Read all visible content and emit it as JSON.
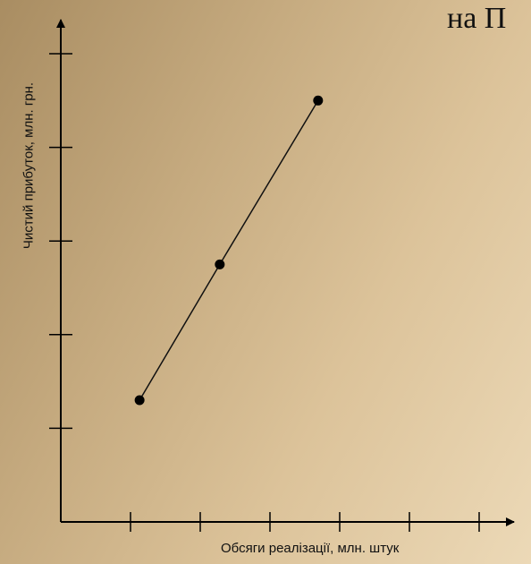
{
  "chart_data": {
    "type": "line",
    "title": "на П",
    "xlabel": "Обсяги реалізації, млн. штук",
    "ylabel": "Чистий прибуток, млн. грн.",
    "x": [
      1.13,
      2.28,
      3.69
    ],
    "series": [
      {
        "values": [
          1.3,
          2.75,
          4.5
        ]
      }
    ],
    "xlim": [
      0,
      6.5
    ],
    "ylim": [
      0,
      5.3
    ],
    "x_ticks": [
      1,
      2,
      3,
      4,
      5,
      6
    ],
    "y_ticks": [
      1,
      2,
      3,
      4,
      5
    ],
    "tick_labels_shown": false,
    "grid": false,
    "legend": "none",
    "colors": {
      "line": "#111111",
      "marker": "#000000",
      "axis": "#000000"
    }
  }
}
